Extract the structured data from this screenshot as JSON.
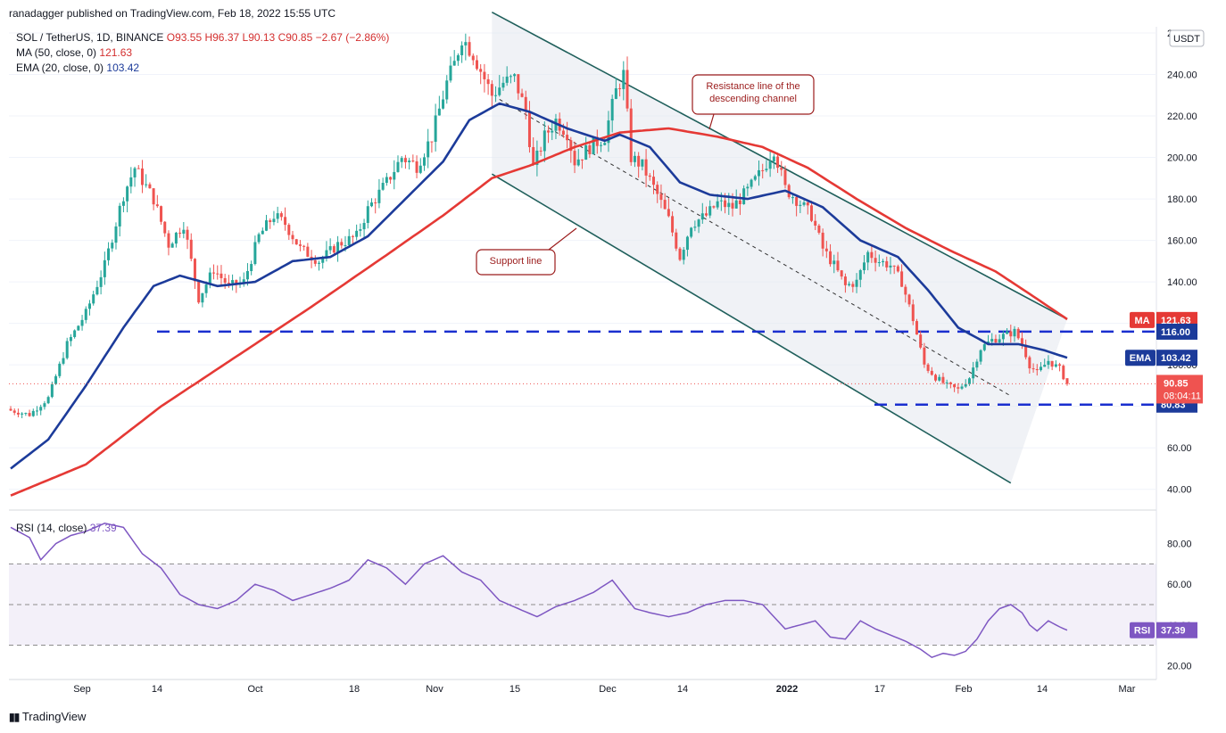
{
  "publisher_line": "ranadagger published on TradingView.com, Feb 18, 2022 15:55 UTC",
  "legend": {
    "symbol": "SOL / TetherUS, 1D, BINANCE",
    "ohlc_open": "O93.55",
    "ohlc_high": "H96.37",
    "ohlc_low": "L90.13",
    "ohlc_close": "C90.85",
    "change": "−2.67 (−2.86%)",
    "ma_label": "MA (50, close, 0)",
    "ma_value": "121.63",
    "ema_label": "EMA (20, close, 0)",
    "ema_value": "103.42",
    "rsi_label": "RSI (14, close)",
    "rsi_value": "37.39"
  },
  "currency": "USDT",
  "brand": "TradingView",
  "colors": {
    "up": "#26a69a",
    "down": "#ef5350",
    "ma": "#e53935",
    "ema": "#1c3b9a",
    "channel": "#1f5f5b",
    "dash": "#1a2fcf",
    "rsi": "#7e57c2"
  },
  "chart_data": [
    {
      "type": "candlestick",
      "title": "SOL / TetherUS, 1D, BINANCE",
      "ylim": [
        33,
        263
      ],
      "y_ticks": [
        "40.00",
        "60.00",
        "80.00",
        "100.00",
        "120.00",
        "140.00",
        "160.00",
        "180.00",
        "200.00",
        "220.00",
        "240.00",
        "260.00"
      ],
      "x_ticks": [
        "Sep",
        "14",
        "Oct",
        "18",
        "Nov",
        "15",
        "Dec",
        "14",
        "2022",
        "17",
        "Feb",
        "14",
        "Mar"
      ],
      "price_labels": {
        "ma": {
          "tag": "MA",
          "value": "121.63",
          "y": 121.63
        },
        "ema": {
          "tag": "EMA",
          "value": "103.42",
          "y": 103.42
        },
        "last": {
          "value": "90.85",
          "countdown": "08:04:11",
          "y": 90.85
        },
        "level_high": {
          "value": "116.00",
          "y": 116
        },
        "level_low": {
          "value": "80.83",
          "y": 80.83
        }
      },
      "annotations": [
        {
          "text": "Resistance line of the descending channel",
          "lines": [
            "Resistance line of the",
            "descending channel"
          ]
        },
        {
          "text": "Support line",
          "lines": [
            "Support line"
          ]
        }
      ],
      "close_anchors": [
        [
          0,
          78
        ],
        [
          5,
          76
        ],
        [
          10,
          84
        ],
        [
          15,
          110
        ],
        [
          20,
          125
        ],
        [
          25,
          148
        ],
        [
          30,
          182
        ],
        [
          33,
          195
        ],
        [
          38,
          180
        ],
        [
          42,
          158
        ],
        [
          46,
          168
        ],
        [
          50,
          132
        ],
        [
          54,
          146
        ],
        [
          58,
          138
        ],
        [
          62,
          140
        ],
        [
          66,
          162
        ],
        [
          70,
          172
        ],
        [
          73,
          168
        ],
        [
          77,
          156
        ],
        [
          82,
          150
        ],
        [
          87,
          158
        ],
        [
          92,
          162
        ],
        [
          95,
          175
        ],
        [
          100,
          188
        ],
        [
          104,
          200
        ],
        [
          108,
          196
        ],
        [
          112,
          210
        ],
        [
          116,
          236
        ],
        [
          118,
          245
        ],
        [
          120,
          258
        ],
        [
          123,
          250
        ],
        [
          126,
          238
        ],
        [
          128,
          230
        ],
        [
          131,
          236
        ],
        [
          134,
          238
        ],
        [
          137,
          222
        ],
        [
          139,
          195
        ],
        [
          142,
          210
        ],
        [
          145,
          218
        ],
        [
          148,
          212
        ],
        [
          150,
          198
        ],
        [
          154,
          205
        ],
        [
          158,
          210
        ],
        [
          161,
          232
        ],
        [
          163,
          240
        ],
        [
          165,
          200
        ],
        [
          168,
          196
        ],
        [
          172,
          182
        ],
        [
          175,
          170
        ],
        [
          178,
          152
        ],
        [
          181,
          168
        ],
        [
          185,
          172
        ],
        [
          188,
          178
        ],
        [
          192,
          176
        ],
        [
          196,
          184
        ],
        [
          200,
          194
        ],
        [
          203,
          204
        ],
        [
          206,
          185
        ],
        [
          210,
          178
        ],
        [
          213,
          172
        ],
        [
          216,
          156
        ],
        [
          219,
          148
        ],
        [
          222,
          138
        ],
        [
          225,
          140
        ],
        [
          228,
          154
        ],
        [
          231,
          150
        ],
        [
          234,
          148
        ],
        [
          237,
          140
        ],
        [
          240,
          122
        ],
        [
          243,
          100
        ],
        [
          246,
          94
        ],
        [
          249,
          90
        ],
        [
          252,
          88
        ],
        [
          255,
          94
        ],
        [
          258,
          108
        ],
        [
          261,
          112
        ],
        [
          264,
          114
        ],
        [
          267,
          116
        ],
        [
          269,
          110
        ],
        [
          271,
          100
        ],
        [
          273,
          96
        ],
        [
          276,
          102
        ],
        [
          279,
          98
        ],
        [
          281,
          91
        ]
      ],
      "ma50_anchors": [
        [
          0,
          37
        ],
        [
          20,
          52
        ],
        [
          40,
          80
        ],
        [
          60,
          104
        ],
        [
          80,
          128
        ],
        [
          100,
          153
        ],
        [
          115,
          172
        ],
        [
          128,
          190
        ],
        [
          138,
          196
        ],
        [
          150,
          205
        ],
        [
          162,
          212
        ],
        [
          175,
          214
        ],
        [
          188,
          210
        ],
        [
          200,
          205
        ],
        [
          212,
          195
        ],
        [
          225,
          180
        ],
        [
          238,
          166
        ],
        [
          250,
          155
        ],
        [
          262,
          145
        ],
        [
          272,
          133
        ],
        [
          281,
          122
        ]
      ],
      "ema20_anchors": [
        [
          0,
          50
        ],
        [
          10,
          64
        ],
        [
          20,
          90
        ],
        [
          30,
          118
        ],
        [
          38,
          138
        ],
        [
          45,
          143
        ],
        [
          55,
          138
        ],
        [
          65,
          140
        ],
        [
          75,
          150
        ],
        [
          85,
          152
        ],
        [
          95,
          162
        ],
        [
          105,
          180
        ],
        [
          115,
          198
        ],
        [
          122,
          218
        ],
        [
          130,
          226
        ],
        [
          138,
          222
        ],
        [
          148,
          214
        ],
        [
          158,
          208
        ],
        [
          162,
          211
        ],
        [
          170,
          205
        ],
        [
          178,
          188
        ],
        [
          186,
          182
        ],
        [
          196,
          180
        ],
        [
          206,
          184
        ],
        [
          216,
          176
        ],
        [
          226,
          160
        ],
        [
          236,
          152
        ],
        [
          244,
          136
        ],
        [
          252,
          118
        ],
        [
          260,
          110
        ],
        [
          268,
          110
        ],
        [
          275,
          107
        ],
        [
          281,
          103.4
        ]
      ],
      "channel": {
        "resistance": [
          [
            128,
            270
          ],
          [
            281,
            122
          ]
        ],
        "support": [
          [
            128,
            192
          ],
          [
            266,
            43
          ]
        ],
        "midline": [
          [
            130,
            228
          ],
          [
            266,
            85
          ]
        ]
      },
      "levels": [
        116,
        80.83
      ]
    },
    {
      "type": "line",
      "title": "RSI (14, close)",
      "ylim": [
        14,
        93
      ],
      "y_ticks": [
        "20.00",
        "40.00",
        "60.00",
        "80.00"
      ],
      "bands": [
        30,
        50,
        70
      ],
      "value_label": {
        "tag": "RSI",
        "value": "37.39",
        "y": 37.39
      },
      "anchors": [
        [
          0,
          88
        ],
        [
          5,
          83
        ],
        [
          8,
          72
        ],
        [
          12,
          80
        ],
        [
          16,
          84
        ],
        [
          20,
          86
        ],
        [
          25,
          90
        ],
        [
          30,
          88
        ],
        [
          35,
          75
        ],
        [
          40,
          68
        ],
        [
          45,
          55
        ],
        [
          50,
          50
        ],
        [
          55,
          48
        ],
        [
          60,
          52
        ],
        [
          65,
          60
        ],
        [
          70,
          57
        ],
        [
          75,
          52
        ],
        [
          80,
          55
        ],
        [
          85,
          58
        ],
        [
          90,
          62
        ],
        [
          95,
          72
        ],
        [
          100,
          68
        ],
        [
          105,
          60
        ],
        [
          110,
          70
        ],
        [
          115,
          74
        ],
        [
          120,
          66
        ],
        [
          125,
          62
        ],
        [
          130,
          52
        ],
        [
          135,
          48
        ],
        [
          140,
          44
        ],
        [
          145,
          49
        ],
        [
          150,
          52
        ],
        [
          155,
          56
        ],
        [
          160,
          62
        ],
        [
          163,
          55
        ],
        [
          166,
          48
        ],
        [
          170,
          46
        ],
        [
          175,
          44
        ],
        [
          180,
          46
        ],
        [
          185,
          50
        ],
        [
          190,
          52
        ],
        [
          195,
          52
        ],
        [
          200,
          50
        ],
        [
          203,
          44
        ],
        [
          206,
          38
        ],
        [
          210,
          40
        ],
        [
          214,
          42
        ],
        [
          218,
          34
        ],
        [
          222,
          33
        ],
        [
          226,
          42
        ],
        [
          230,
          38
        ],
        [
          234,
          35
        ],
        [
          238,
          32
        ],
        [
          242,
          28
        ],
        [
          245,
          24
        ],
        [
          248,
          26
        ],
        [
          251,
          25
        ],
        [
          254,
          27
        ],
        [
          257,
          33
        ],
        [
          260,
          42
        ],
        [
          263,
          48
        ],
        [
          266,
          50
        ],
        [
          269,
          46
        ],
        [
          271,
          40
        ],
        [
          273,
          37
        ],
        [
          276,
          42
        ],
        [
          279,
          39
        ],
        [
          281,
          37.4
        ]
      ]
    }
  ]
}
